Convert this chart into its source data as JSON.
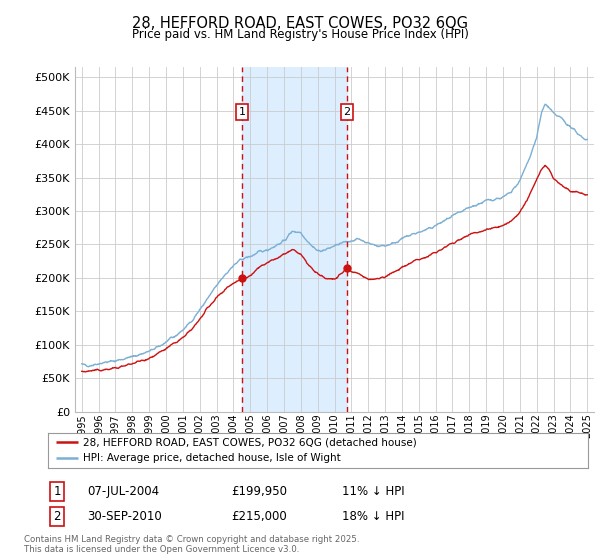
{
  "title": "28, HEFFORD ROAD, EAST COWES, PO32 6QG",
  "subtitle": "Price paid vs. HM Land Registry's House Price Index (HPI)",
  "ylabel_ticks": [
    "£0",
    "£50K",
    "£100K",
    "£150K",
    "£200K",
    "£250K",
    "£300K",
    "£350K",
    "£400K",
    "£450K",
    "£500K"
  ],
  "ytick_vals": [
    0,
    50000,
    100000,
    150000,
    200000,
    250000,
    300000,
    350000,
    400000,
    450000,
    500000
  ],
  "ylim": [
    0,
    515000
  ],
  "xlim_start": 1994.6,
  "xlim_end": 2025.4,
  "background_color": "#ffffff",
  "plot_bg_color": "#ffffff",
  "grid_color": "#cccccc",
  "hpi_color": "#7bafd4",
  "price_color": "#cc1111",
  "marker1_date": 2004.52,
  "marker2_date": 2010.75,
  "marker1_price": 199950,
  "marker2_price": 215000,
  "shaded_color": "#ddeeff",
  "legend_label_red": "28, HEFFORD ROAD, EAST COWES, PO32 6QG (detached house)",
  "legend_label_blue": "HPI: Average price, detached house, Isle of Wight",
  "annotation1": [
    "1",
    "07-JUL-2004",
    "£199,950",
    "11% ↓ HPI"
  ],
  "annotation2": [
    "2",
    "30-SEP-2010",
    "£215,000",
    "18% ↓ HPI"
  ],
  "footnote": "Contains HM Land Registry data © Crown copyright and database right 2025.\nThis data is licensed under the Open Government Licence v3.0.",
  "xtick_years": [
    1995,
    1996,
    1997,
    1998,
    1999,
    2000,
    2001,
    2002,
    2003,
    2004,
    2005,
    2006,
    2007,
    2008,
    2009,
    2010,
    2011,
    2012,
    2013,
    2014,
    2015,
    2016,
    2017,
    2018,
    2019,
    2020,
    2021,
    2022,
    2023,
    2024,
    2025
  ],
  "hpi_anchors": [
    [
      1995.0,
      70000
    ],
    [
      1995.5,
      69000
    ],
    [
      1996.0,
      72000
    ],
    [
      1996.5,
      74000
    ],
    [
      1997.0,
      76000
    ],
    [
      1997.5,
      79000
    ],
    [
      1998.0,
      82000
    ],
    [
      1998.5,
      86000
    ],
    [
      1999.0,
      90000
    ],
    [
      1999.5,
      96000
    ],
    [
      2000.0,
      104000
    ],
    [
      2000.5,
      112000
    ],
    [
      2001.0,
      122000
    ],
    [
      2001.5,
      135000
    ],
    [
      2002.0,
      152000
    ],
    [
      2002.5,
      170000
    ],
    [
      2003.0,
      188000
    ],
    [
      2003.5,
      205000
    ],
    [
      2004.0,
      218000
    ],
    [
      2004.5,
      228000
    ],
    [
      2005.0,
      232000
    ],
    [
      2005.5,
      238000
    ],
    [
      2006.0,
      242000
    ],
    [
      2006.5,
      248000
    ],
    [
      2007.0,
      255000
    ],
    [
      2007.5,
      270000
    ],
    [
      2008.0,
      268000
    ],
    [
      2008.5,
      252000
    ],
    [
      2009.0,
      240000
    ],
    [
      2009.5,
      242000
    ],
    [
      2010.0,
      248000
    ],
    [
      2010.5,
      252000
    ],
    [
      2011.0,
      256000
    ],
    [
      2011.5,
      258000
    ],
    [
      2012.0,
      252000
    ],
    [
      2012.5,
      248000
    ],
    [
      2013.0,
      248000
    ],
    [
      2013.5,
      252000
    ],
    [
      2014.0,
      258000
    ],
    [
      2014.5,
      264000
    ],
    [
      2015.0,
      268000
    ],
    [
      2015.5,
      272000
    ],
    [
      2016.0,
      278000
    ],
    [
      2016.5,
      285000
    ],
    [
      2017.0,
      292000
    ],
    [
      2017.5,
      298000
    ],
    [
      2018.0,
      305000
    ],
    [
      2018.5,
      310000
    ],
    [
      2019.0,
      315000
    ],
    [
      2019.5,
      318000
    ],
    [
      2020.0,
      320000
    ],
    [
      2020.5,
      328000
    ],
    [
      2021.0,
      345000
    ],
    [
      2021.5,
      375000
    ],
    [
      2022.0,
      410000
    ],
    [
      2022.3,
      448000
    ],
    [
      2022.5,
      460000
    ],
    [
      2022.7,
      455000
    ],
    [
      2023.0,
      445000
    ],
    [
      2023.5,
      438000
    ],
    [
      2024.0,
      425000
    ],
    [
      2024.5,
      415000
    ],
    [
      2025.0,
      405000
    ]
  ],
  "price_anchors": [
    [
      1995.0,
      60000
    ],
    [
      1995.5,
      60500
    ],
    [
      1996.0,
      62000
    ],
    [
      1996.5,
      63000
    ],
    [
      1997.0,
      65000
    ],
    [
      1997.5,
      68000
    ],
    [
      1998.0,
      72000
    ],
    [
      1998.5,
      76000
    ],
    [
      1999.0,
      80000
    ],
    [
      1999.5,
      86000
    ],
    [
      2000.0,
      94000
    ],
    [
      2000.5,
      102000
    ],
    [
      2001.0,
      110000
    ],
    [
      2001.5,
      122000
    ],
    [
      2002.0,
      138000
    ],
    [
      2002.5,
      155000
    ],
    [
      2003.0,
      170000
    ],
    [
      2003.5,
      183000
    ],
    [
      2004.0,
      192000
    ],
    [
      2004.52,
      199950
    ],
    [
      2005.0,
      203000
    ],
    [
      2005.5,
      215000
    ],
    [
      2006.0,
      222000
    ],
    [
      2006.5,
      228000
    ],
    [
      2007.0,
      235000
    ],
    [
      2007.5,
      242000
    ],
    [
      2008.0,
      235000
    ],
    [
      2008.5,
      218000
    ],
    [
      2009.0,
      205000
    ],
    [
      2009.5,
      200000
    ],
    [
      2010.0,
      198000
    ],
    [
      2010.75,
      215000
    ],
    [
      2011.0,
      210000
    ],
    [
      2011.5,
      205000
    ],
    [
      2012.0,
      198000
    ],
    [
      2012.5,
      198000
    ],
    [
      2013.0,
      202000
    ],
    [
      2013.5,
      208000
    ],
    [
      2014.0,
      215000
    ],
    [
      2014.5,
      222000
    ],
    [
      2015.0,
      228000
    ],
    [
      2015.5,
      232000
    ],
    [
      2016.0,
      238000
    ],
    [
      2016.5,
      245000
    ],
    [
      2017.0,
      252000
    ],
    [
      2017.5,
      258000
    ],
    [
      2018.0,
      265000
    ],
    [
      2018.5,
      268000
    ],
    [
      2019.0,
      272000
    ],
    [
      2019.5,
      275000
    ],
    [
      2020.0,
      278000
    ],
    [
      2020.5,
      285000
    ],
    [
      2021.0,
      298000
    ],
    [
      2021.5,
      320000
    ],
    [
      2022.0,
      348000
    ],
    [
      2022.3,
      362000
    ],
    [
      2022.5,
      368000
    ],
    [
      2022.8,
      358000
    ],
    [
      2023.0,
      348000
    ],
    [
      2023.5,
      338000
    ],
    [
      2024.0,
      330000
    ],
    [
      2024.5,
      328000
    ],
    [
      2025.0,
      325000
    ]
  ]
}
